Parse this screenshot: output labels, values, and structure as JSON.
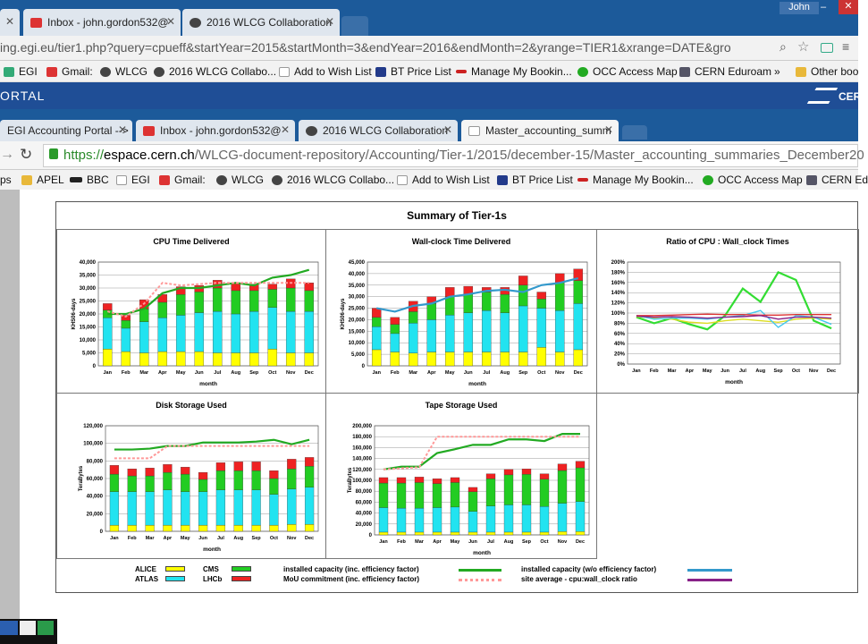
{
  "tabs_top": [
    {
      "label": "",
      "closable": true
    },
    {
      "label": "Inbox - john.gordon532@",
      "closable": true
    },
    {
      "label": "2016 WLCG Collaboration",
      "closable": true
    }
  ],
  "user": "John",
  "url_top": "ing.egi.eu/tier1.php?query=cpueff&startYear=2015&startMonth=3&endYear=2016&endMonth=2&yrange=TIER1&xrange=DATE&gro",
  "bookmarks_top": [
    "EGI",
    "Gmail:",
    "WLCG",
    "2016 WLCG Collabo...",
    "Add to Wish List",
    "BT Price List",
    "Manage My Bookin...",
    "OCC Access Map",
    "CERN Eduroam",
    "»",
    "Other boo"
  ],
  "portal_text": "ORTAL",
  "portal_logo": "CER",
  "tabs_second": [
    {
      "label": "EGI Accounting Portal -->"
    },
    {
      "label": "Inbox - john.gordon532@"
    },
    {
      "label": "2016 WLCG Collaboration"
    },
    {
      "label": "Master_accounting_summ"
    }
  ],
  "url_second_scheme": "https://",
  "url_second_host": "espace.cern.ch",
  "url_second_path": "/WLCG-document-repository/Accounting/Tier-1/2015/december-15/Master_accounting_summaries_December20",
  "bookmarks_second": [
    "ps",
    "APEL",
    "BBC",
    "EGI",
    "Gmail:",
    "WLCG",
    "2016 WLCG Collabo...",
    "Add to Wish List",
    "BT Price List",
    "Manage My Bookin...",
    "OCC Access Map",
    "CERN Ed"
  ],
  "doc_title": "Summary of Tier-1s",
  "months": [
    "Jan",
    "Feb",
    "Mar",
    "Apr",
    "May",
    "Jun",
    "Jul",
    "Aug",
    "Sep",
    "Oct",
    "Nov",
    "Dec"
  ],
  "colors": {
    "ALICE": "#ffff00",
    "ATLAS": "#22e3f0",
    "CMS": "#22cc22",
    "LHCb": "#ee2222",
    "capacity": "#22aa22",
    "capacity_wo": "#3399cc",
    "mou": "#ff9999",
    "site_avg": "#882288"
  },
  "legend": {
    "alice": "ALICE",
    "atlas": "ATLAS",
    "cms": "CMS",
    "lhcb": "LHCb",
    "cap": "installed capacity (inc. efficiency factor)",
    "mou": "MoU commitment (inc. efficiency factor)",
    "cap_wo": "installed capacity (w/o efficiency factor)",
    "siteavg": "site average - cpu:wall_clock ratio"
  },
  "chart_data": [
    {
      "type": "bar",
      "title": "CPU Time Delivered",
      "xlabel": "month",
      "ylabel": "KHS06-days",
      "ylim": [
        0,
        40000
      ],
      "categories": [
        "Jan",
        "Feb",
        "Mar",
        "Apr",
        "May",
        "Jun",
        "Jul",
        "Aug",
        "Sep",
        "Oct",
        "Nov",
        "Dec"
      ],
      "series": [
        {
          "name": "ALICE",
          "values": [
            6500,
            5500,
            5000,
            5500,
            5500,
            5500,
            5000,
            5000,
            5000,
            6500,
            5000,
            5000
          ]
        },
        {
          "name": "ATLAS",
          "values": [
            12000,
            9000,
            12000,
            13000,
            14000,
            15000,
            16000,
            15000,
            16000,
            16000,
            16000,
            16000
          ]
        },
        {
          "name": "CMS",
          "values": [
            3000,
            3000,
            5000,
            6000,
            8000,
            8000,
            9000,
            9000,
            8000,
            7000,
            9000,
            8000
          ]
        },
        {
          "name": "LHCb",
          "values": [
            2500,
            2000,
            3500,
            3000,
            3000,
            2500,
            3000,
            3000,
            2500,
            2000,
            3500,
            3000
          ]
        }
      ],
      "lines": [
        {
          "name": "installed capacity (inc. efficiency factor)",
          "values": [
            20000,
            20000,
            22000,
            28000,
            30000,
            30000,
            31000,
            32000,
            31000,
            34000,
            35000,
            37000
          ]
        },
        {
          "name": "MoU commitment (inc. efficiency factor)",
          "values": [
            21000,
            19000,
            24000,
            32000,
            31000,
            31500,
            32000,
            32000,
            32000,
            32000,
            32000,
            32000
          ]
        }
      ]
    },
    {
      "type": "bar",
      "title": "Wall-clock Time Delivered",
      "xlabel": "month",
      "ylabel": "KHS06-days",
      "ylim": [
        0,
        45000
      ],
      "categories": [
        "Jan",
        "Feb",
        "Mar",
        "Apr",
        "May",
        "Jun",
        "Jul",
        "Aug",
        "Sep",
        "Oct",
        "Nov",
        "Dec"
      ],
      "series": [
        {
          "name": "ALICE",
          "values": [
            7000,
            6000,
            5500,
            6000,
            6000,
            6000,
            6000,
            6000,
            6000,
            8000,
            6000,
            7000
          ]
        },
        {
          "name": "ATLAS",
          "values": [
            10000,
            8000,
            13000,
            14000,
            16000,
            17000,
            18000,
            17000,
            20000,
            17000,
            18000,
            20000
          ]
        },
        {
          "name": "CMS",
          "values": [
            4000,
            4000,
            5000,
            7000,
            8000,
            8000,
            8000,
            8000,
            9000,
            4000,
            12000,
            10000
          ]
        },
        {
          "name": "LHCb",
          "values": [
            4000,
            3000,
            4500,
            3000,
            4000,
            3500,
            2000,
            3000,
            4000,
            3000,
            4000,
            5000
          ]
        }
      ],
      "lines": [
        {
          "name": "installed capacity (w/o efficiency factor)",
          "values": [
            25000,
            23500,
            26000,
            27000,
            30000,
            31000,
            32500,
            33000,
            32000,
            35000,
            36000,
            38000
          ]
        }
      ]
    },
    {
      "type": "line",
      "title": "Ratio of CPU : Wall_clock Times",
      "xlabel": "month",
      "ylim": [
        0,
        200
      ],
      "yunit": "%",
      "categories": [
        "Jan",
        "Feb",
        "Mar",
        "Apr",
        "May",
        "Jun",
        "Jul",
        "Aug",
        "Sep",
        "Oct",
        "Nov",
        "Dec"
      ],
      "series": [
        {
          "name": "CMS",
          "values": [
            92,
            80,
            90,
            78,
            68,
            95,
            148,
            122,
            180,
            165,
            85,
            70
          ]
        },
        {
          "name": "ALICE",
          "values": [
            93,
            90,
            88,
            82,
            80,
            85,
            88,
            85,
            82,
            88,
            90,
            88
          ]
        },
        {
          "name": "ATLAS",
          "values": [
            95,
            88,
            90,
            90,
            88,
            92,
            95,
            105,
            72,
            95,
            92,
            78
          ]
        },
        {
          "name": "LHCb",
          "values": [
            95,
            95,
            96,
            97,
            98,
            97,
            97,
            96,
            96,
            97,
            97,
            97
          ]
        },
        {
          "name": "site average",
          "values": [
            94,
            92,
            93,
            92,
            90,
            92,
            93,
            95,
            88,
            92,
            92,
            90
          ]
        }
      ]
    },
    {
      "type": "bar",
      "title": "Disk Storage Used",
      "xlabel": "month",
      "ylabel": "TeraBytes",
      "ylim": [
        0,
        120000
      ],
      "categories": [
        "Jan",
        "Feb",
        "Mar",
        "Apr",
        "May",
        "Jun",
        "Jul",
        "Aug",
        "Sep",
        "Oct",
        "Nov",
        "Dec"
      ],
      "series": [
        {
          "name": "ALICE",
          "values": [
            7000,
            7000,
            7000,
            7000,
            7000,
            7000,
            7000,
            7000,
            7000,
            7000,
            8000,
            8000
          ]
        },
        {
          "name": "ATLAS",
          "values": [
            38000,
            38000,
            38000,
            40000,
            38000,
            38000,
            40000,
            40000,
            40000,
            35000,
            40000,
            42000
          ]
        },
        {
          "name": "CMS",
          "values": [
            20000,
            18000,
            18000,
            20000,
            20000,
            14000,
            22000,
            22000,
            22000,
            18000,
            23000,
            24000
          ]
        },
        {
          "name": "LHCb",
          "values": [
            10000,
            8000,
            9000,
            9000,
            8000,
            8000,
            9000,
            10000,
            10000,
            9000,
            11000,
            10000
          ]
        }
      ],
      "lines": [
        {
          "name": "installed capacity (inc. efficiency factor)",
          "values": [
            93000,
            93000,
            94000,
            97000,
            97000,
            101000,
            101000,
            101000,
            102000,
            104000,
            99000,
            104000
          ]
        },
        {
          "name": "MoU commitment (inc. efficiency factor)",
          "values": [
            83000,
            83000,
            83000,
            97000,
            97000,
            97000,
            97000,
            97000,
            97000,
            97000,
            97000,
            97000
          ]
        }
      ]
    },
    {
      "type": "bar",
      "title": "Tape Storage Used",
      "xlabel": "month",
      "ylabel": "TeraBytes",
      "ylim": [
        0,
        200000
      ],
      "categories": [
        "Jan",
        "Feb",
        "Mar",
        "Apr",
        "May",
        "Jun",
        "Jul",
        "Aug",
        "Sep",
        "Oct",
        "Nov",
        "Dec"
      ],
      "series": [
        {
          "name": "ALICE",
          "values": [
            5000,
            5000,
            5000,
            5000,
            5000,
            5000,
            5000,
            5000,
            5000,
            5000,
            6000,
            6000
          ]
        },
        {
          "name": "ATLAS",
          "values": [
            45000,
            44000,
            44000,
            45000,
            46000,
            38000,
            48000,
            50000,
            50000,
            47000,
            52000,
            55000
          ]
        },
        {
          "name": "CMS",
          "values": [
            45000,
            46000,
            47000,
            44000,
            45000,
            36000,
            50000,
            55000,
            56000,
            50000,
            60000,
            62000
          ]
        },
        {
          "name": "LHCb",
          "values": [
            10000,
            10000,
            10000,
            9000,
            9000,
            8000,
            9000,
            10000,
            10000,
            10000,
            12000,
            12000
          ]
        }
      ],
      "lines": [
        {
          "name": "installed capacity (inc. efficiency factor)",
          "values": [
            120000,
            125000,
            125000,
            150000,
            157000,
            165000,
            165000,
            175000,
            175000,
            172000,
            185000,
            185000
          ]
        },
        {
          "name": "MoU commitment (inc. efficiency factor)",
          "values": [
            120000,
            122000,
            124000,
            180000,
            180000,
            180000,
            180000,
            180000,
            180000,
            180000,
            180000,
            180000
          ]
        }
      ]
    }
  ]
}
